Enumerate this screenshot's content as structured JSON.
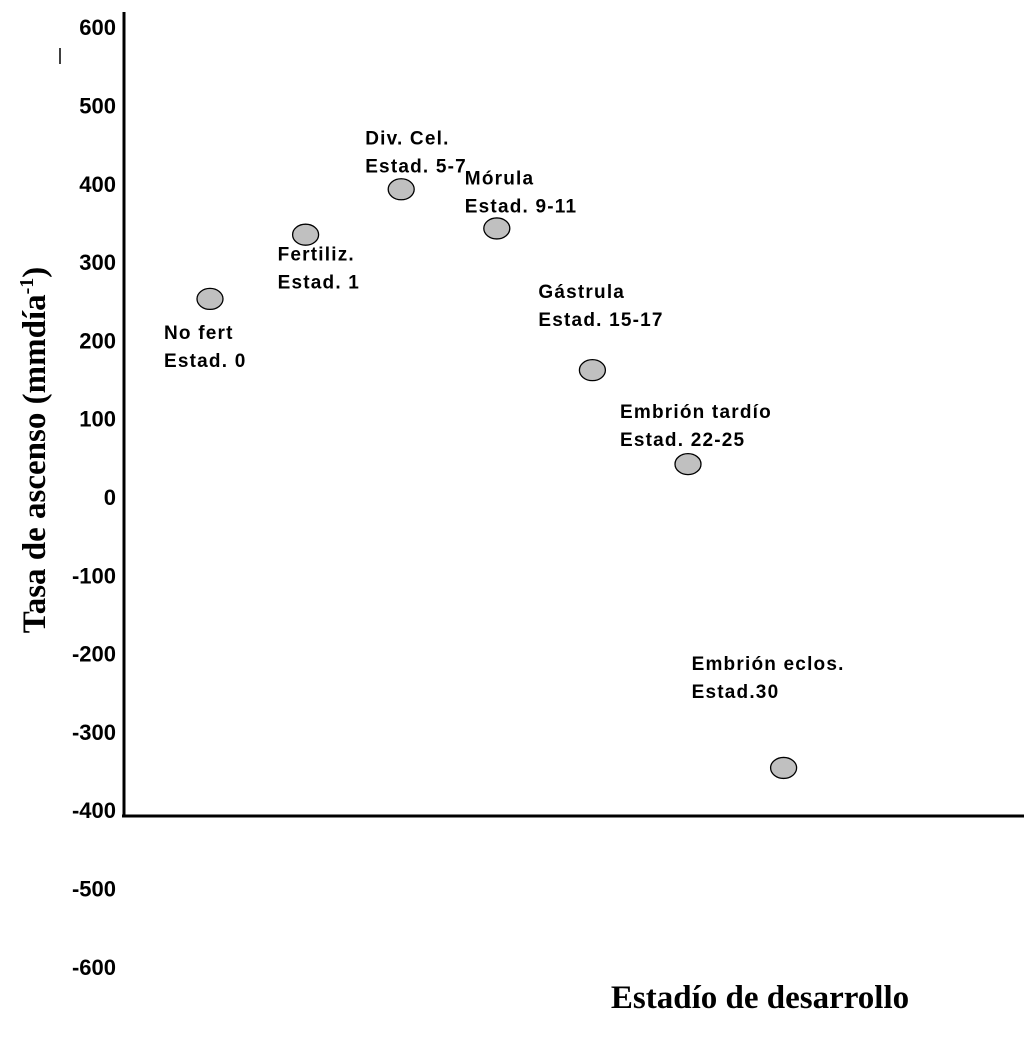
{
  "chart_data": {
    "type": "scatter",
    "title": "",
    "xlabel": "Estadío de desarrollo",
    "ylabel": "Tasa de ascenso (mmdía",
    "ylabel_superscript": "-1",
    "ylabel_suffix": ")",
    "ylim": [
      -600,
      600
    ],
    "yticks": [
      -600,
      -500,
      -400,
      -300,
      -200,
      -100,
      0,
      100,
      200,
      300,
      400,
      500,
      600
    ],
    "grid": false,
    "legend": "none",
    "marker_fill": "#c0c0c0",
    "marker_stroke": "#000000",
    "points": [
      {
        "x": 1,
        "y": 253,
        "label1": "No fert",
        "label2": "Estad. 0"
      },
      {
        "x": 2,
        "y": 335,
        "label1": "Fertiliz.",
        "label2": "Estad. 1"
      },
      {
        "x": 3,
        "y": 393,
        "label1": "Div. Cel.",
        "label2": "Estad. 5-7"
      },
      {
        "x": 4,
        "y": 343,
        "label1": "Mórula",
        "label2": "Estad. 9-11"
      },
      {
        "x": 5,
        "y": 162,
        "label1": "Gástrula",
        "label2": "Estad. 15-17"
      },
      {
        "x": 6,
        "y": 42,
        "label1": "Embrión tardío",
        "label2": "Estad. 22-25"
      },
      {
        "x": 7,
        "y": -346,
        "label1": "Embrión eclos.",
        "label2": "Estad.30"
      }
    ]
  }
}
